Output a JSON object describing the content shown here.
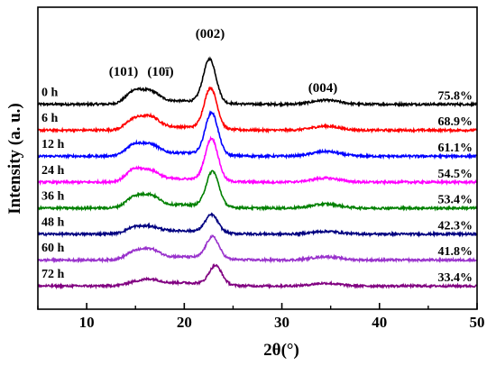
{
  "chart_data": {
    "type": "line",
    "title": "",
    "xlabel": "2θ(°)",
    "ylabel": "Intensity (a. u.)",
    "xlim": [
      5,
      50
    ],
    "xticks": [
      10,
      20,
      30,
      40,
      50
    ],
    "y_tick_labels": false,
    "grid": false,
    "legend": "inline labels at left and right of each trace",
    "peak_annotations": [
      {
        "label": "(101)",
        "x": 14.8
      },
      {
        "label": "(10ī)",
        "x": 16.5
      },
      {
        "label": "(002)",
        "x": 22.6
      },
      {
        "label": "(004)",
        "x": 34.5
      }
    ],
    "series": [
      {
        "name": "0 h",
        "crystallinity": "75.8%",
        "color": "#000000",
        "offset": 7,
        "peaks": {
          "p101": 0.85,
          "p10i": 0.8,
          "p002": 3.2,
          "p004": 0.3
        },
        "peak_x": 22.6
      },
      {
        "name": "6 h",
        "crystallinity": "68.9%",
        "color": "#ff0000",
        "offset": 6,
        "peaks": {
          "p101": 0.7,
          "p10i": 0.85,
          "p002": 3.0,
          "p004": 0.3
        },
        "peak_x": 22.7
      },
      {
        "name": "12 h",
        "crystallinity": "61.1%",
        "color": "#0000ff",
        "offset": 5,
        "peaks": {
          "p101": 0.75,
          "p10i": 0.7,
          "p002": 3.1,
          "p004": 0.35
        },
        "peak_x": 22.8
      },
      {
        "name": "24 h",
        "crystallinity": "54.5%",
        "color": "#ff00ff",
        "offset": 4,
        "peaks": {
          "p101": 0.8,
          "p10i": 0.7,
          "p002": 3.1,
          "p004": 0.3
        },
        "peak_x": 22.8
      },
      {
        "name": "36 h",
        "crystallinity": "53.4%",
        "color": "#008000",
        "offset": 3,
        "peaks": {
          "p101": 0.7,
          "p10i": 0.8,
          "p002": 2.6,
          "p004": 0.3
        },
        "peak_x": 22.9
      },
      {
        "name": "48 h",
        "crystallinity": "42.3%",
        "color": "#000080",
        "offset": 2,
        "peaks": {
          "p101": 0.4,
          "p10i": 0.4,
          "p002": 1.3,
          "p004": 0.2
        },
        "peak_x": 22.8
      },
      {
        "name": "60 h",
        "crystallinity": "41.8%",
        "color": "#9932cc",
        "offset": 1,
        "peaks": {
          "p101": 0.5,
          "p10i": 0.65,
          "p002": 1.6,
          "p004": 0.25
        },
        "peak_x": 22.9
      },
      {
        "name": "72 h",
        "crystallinity": "33.4%",
        "color": "#800080",
        "offset": 0,
        "peaks": {
          "p101": 0.2,
          "p10i": 0.35,
          "p002": 1.4,
          "p004": 0.2
        },
        "peak_x": 23.2
      }
    ]
  }
}
